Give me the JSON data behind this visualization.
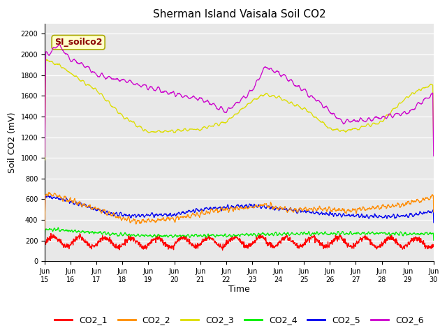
{
  "title": "Sherman Island Vaisala Soil CO2",
  "ylabel": "Soil CO2 (mV)",
  "xlabel": "Time",
  "annotation": "SI_soilco2",
  "x_tick_labels": [
    "Jun\n15",
    "Jun\n16",
    "Jun\n17",
    "Jun\n18",
    "Jun\n19",
    "Jun\n20",
    "Jun\n21",
    "Jun\n22",
    "Jun\n23",
    "Jun\n24",
    "Jun\n25",
    "Jun\n26",
    "Jun\n27",
    "Jun\n28",
    "Jun\n29",
    "Jun\n30"
  ],
  "ylim": [
    0,
    2300
  ],
  "yticks": [
    0,
    200,
    400,
    600,
    800,
    1000,
    1200,
    1400,
    1600,
    1800,
    2000,
    2200
  ],
  "colors": {
    "CO2_1": "#ff0000",
    "CO2_2": "#ff8c00",
    "CO2_3": "#dddd00",
    "CO2_4": "#00ee00",
    "CO2_5": "#0000ee",
    "CO2_6": "#cc00cc"
  },
  "bg_color": "#e8e8e8",
  "title_fontsize": 11,
  "label_fontsize": 9,
  "tick_fontsize": 7,
  "legend_fontsize": 9,
  "annot_fontsize": 9
}
